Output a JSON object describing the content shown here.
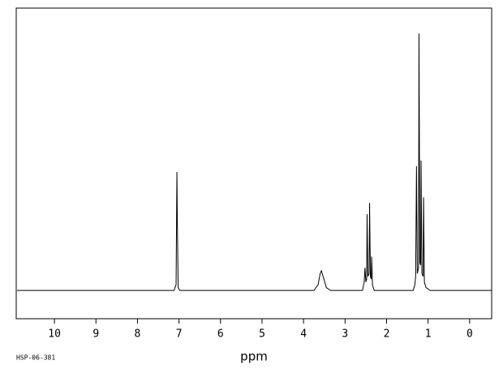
{
  "chart_data": {
    "type": "line",
    "x_label": "ppm",
    "code": "HSP-06-381",
    "xlim": [
      10.92,
      -0.53
    ],
    "ylim": [
      -10,
      100
    ],
    "xticks": [
      10,
      9,
      8,
      7,
      6,
      5,
      4,
      3,
      2,
      1,
      0
    ],
    "color": "#000000",
    "x": [
      10.9,
      7.12,
      7.07,
      7.05,
      7.04,
      7.02,
      6.98,
      3.75,
      3.65,
      3.6,
      3.57,
      3.53,
      3.45,
      3.35,
      2.58,
      2.54,
      2.52,
      2.5,
      2.48,
      2.47,
      2.45,
      2.42,
      2.41,
      2.39,
      2.37,
      2.36,
      2.34,
      2.3,
      1.36,
      1.32,
      1.3,
      1.28,
      1.26,
      1.23,
      1.22,
      1.2,
      1.18,
      1.17,
      1.15,
      1.12,
      1.11,
      1.09,
      1.05,
      0.95,
      -0.53
    ],
    "values": [
      0,
      0,
      2,
      42,
      25,
      1,
      0,
      0,
      2,
      6,
      7,
      5,
      1,
      0,
      0,
      3,
      8,
      3,
      4,
      27,
      5,
      6,
      31,
      5,
      4,
      12,
      2,
      0,
      0,
      2,
      5,
      44,
      6,
      8,
      91,
      10,
      9,
      46,
      6,
      5,
      33,
      3,
      1,
      0,
      0
    ]
  }
}
